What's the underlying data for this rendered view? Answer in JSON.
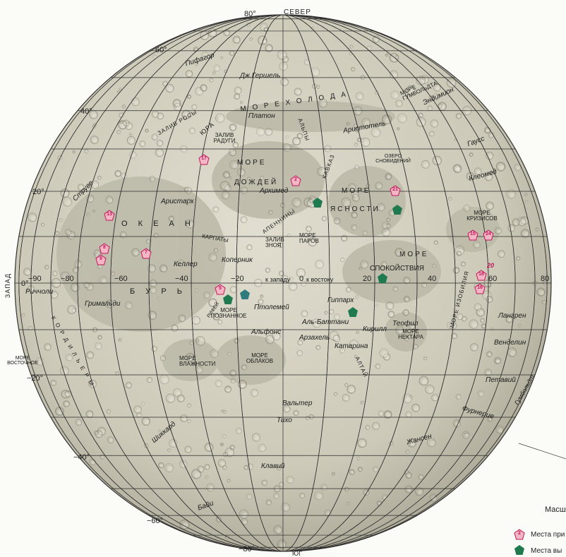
{
  "colors": {
    "surface": "#cfccbb",
    "crater": "#8d8a7c",
    "grid": "#2a2a2a",
    "pink": "#e8869b",
    "green": "#1f7a50"
  },
  "top": {
    "north": "СЕВЕР",
    "south": "ЮГ",
    "west": "ЗАПАД",
    "lat80n": "80°",
    "lat80s": "−80°"
  },
  "degrees": {
    "l60n": "60°",
    "l40n": "40°",
    "l20n": "20°",
    "l0": "0°",
    "l20s": "−20°",
    "l40s": "−40°",
    "l60s": "−60°",
    "m90w": "−90",
    "m80w": "−80",
    "m60": "−60",
    "m40": "−40",
    "m20": "−20",
    "m0": "0",
    "p20": "20",
    "p40": "40",
    "p60": "60",
    "p80": "80"
  },
  "labels": {
    "pifagor": "Пифагор",
    "hershel": "Дж.Гершель",
    "more_holoda": "М О Р Е   Х О Л О Д А",
    "more_humboldt": "МОРЕ ГУМБОЛЬДТА",
    "endimion": "Эндимион",
    "zaliv_rosy": "ЗАЛИВ РОСЫ",
    "yura": "ЮРА",
    "platon": "Платон",
    "alpy": "АЛЬПЫ",
    "aristotel": "Аристотель",
    "gauss": "Гаусс",
    "zaliv_radugi": "ЗАЛИВ РАДУГИ",
    "ozero": "ОЗЕРО СНОВИДЕНИЙ",
    "kleomed": "Клеомед",
    "more": "МОРЕ",
    "dozhdey": "ДОЖДЕЙ",
    "kavkaz": "КАВКАЗ",
    "arhimed": "Архимед",
    "more2": "МОРЕ",
    "struve": "Струве",
    "aristarh": "Аристарх",
    "yasnosti": "ЯСНОСТИ",
    "okean": "О К Е А Н",
    "apenniny": "АПЕННИНЫ",
    "karpaty": "КАРПАТЫ",
    "zaliv_znoya": "ЗАЛИВ ЗНОЯ",
    "more_parov": "МОРЕ ПАРОВ",
    "more_krizisov": "МОРЕ КРИЗИСОВ",
    "more3": "МОРЕ",
    "kepler": "Кеплер",
    "kopernik": "Коперник",
    "k_zapadu": "к западу",
    "k_vostoku": "к востоку",
    "spokoystviya": "СПОКОЙСТВИЯ",
    "burj": "Б У Р Ь",
    "riccioli": "Риччоли",
    "grimaldi": "Гримальди",
    "rifey": "РИФЕЙ",
    "ptolemey": "Птолемей",
    "more_poznannoe": "МОРЕ ПОЗНАННОЕ",
    "gipparh": "Гиппарх",
    "more_izobiliya": "МОРЕ ИЗОБИЛИЯ",
    "langren": "Лангрен",
    "albattani": "Аль-Баттани",
    "kirill": "Кирилл",
    "teofil": "Теофил",
    "more_nektara": "МОРЕ НЕКТАРА",
    "alfons": "Альфонс",
    "arzahel": "Арзахель",
    "katarina": "Катарина",
    "vendelin": "Венделин",
    "kordilery": "К О Р Д И Л Ь Е Р Ы",
    "more_vostochnoe": "МОРЕ ВОСТОЧНОЕ",
    "more_vlazhnosti": "МОРЕ ВЛАЖНОСТИ",
    "more_oblakov": "МОРЕ ОБЛАКОВ",
    "altay": "АЛТАЙ",
    "petaviy": "Петавий",
    "gumbolt": "Гумбольдт",
    "valter": "Вальтер",
    "furnerie": "Фурнерие",
    "tiho": "Тихо",
    "shikkard": "Шиккард",
    "zhansen": "Жансен",
    "klaviy": "Клавий",
    "bayi": "Байи"
  },
  "markers": {
    "m2": "2",
    "m5": "5",
    "m7": "7",
    "m8": "8",
    "m9": "9",
    "m13": "13",
    "m15": "15",
    "m16": "16",
    "m17": "17",
    "m18": "18",
    "m20": "20",
    "m21": "21",
    "m24": "24"
  },
  "legend": {
    "scale": "Масш",
    "pink_label": "Места при",
    "green_label": "Места вы"
  }
}
